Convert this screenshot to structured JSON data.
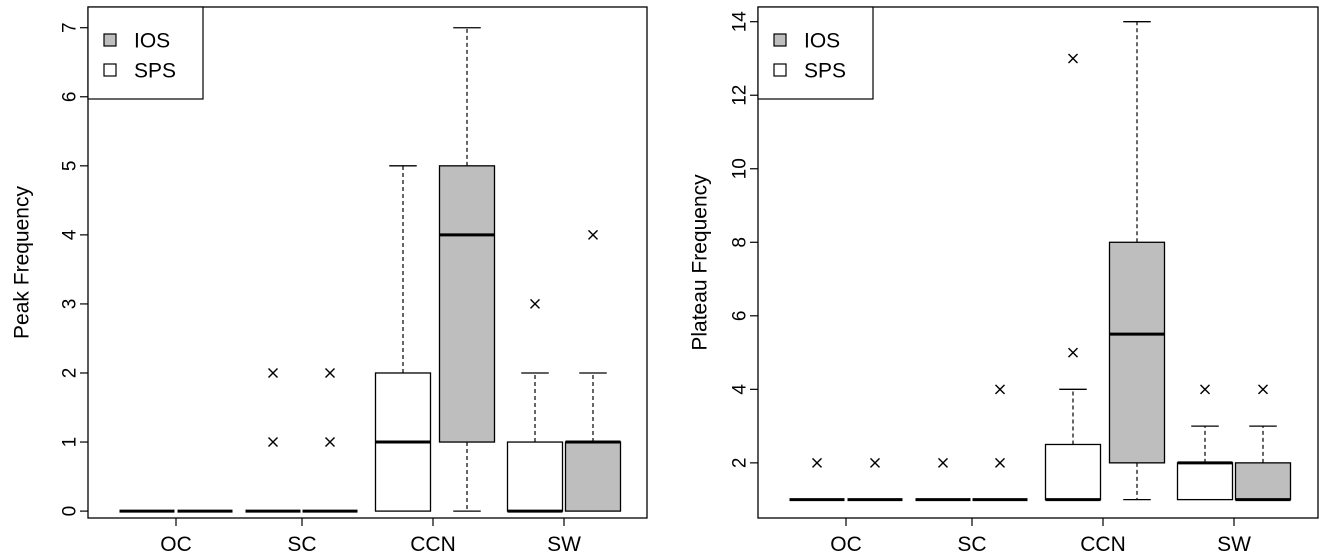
{
  "chart_data": [
    {
      "type": "box",
      "ylabel": "Peak Frequency",
      "categories": [
        "OC",
        "SC",
        "CCN",
        "SW"
      ],
      "yticks": [
        0,
        1,
        2,
        3,
        4,
        5,
        6,
        7
      ],
      "ylim": [
        -0.1,
        7.3
      ],
      "legend": {
        "position": "top-left",
        "entries": [
          {
            "label": "IOS",
            "color": "#bebebe"
          },
          {
            "label": "SPS",
            "color": "#ffffff"
          }
        ]
      },
      "series": [
        {
          "name": "SPS",
          "color": "#ffffff",
          "boxes": [
            {
              "category": "OC",
              "min": 0,
              "q1": 0,
              "median": 0,
              "q3": 0,
              "max": 0,
              "outliers": []
            },
            {
              "category": "SC",
              "min": 0,
              "q1": 0,
              "median": 0,
              "q3": 0,
              "max": 0,
              "outliers": [
                1,
                2
              ]
            },
            {
              "category": "CCN",
              "min": 0,
              "q1": 0,
              "median": 1,
              "q3": 2,
              "max": 5,
              "outliers": []
            },
            {
              "category": "SW",
              "min": 0,
              "q1": 0,
              "median": 0,
              "q3": 1,
              "max": 2,
              "outliers": [
                3
              ]
            }
          ]
        },
        {
          "name": "IOS",
          "color": "#bebebe",
          "boxes": [
            {
              "category": "OC",
              "min": 0,
              "q1": 0,
              "median": 0,
              "q3": 0,
              "max": 0,
              "outliers": []
            },
            {
              "category": "SC",
              "min": 0,
              "q1": 0,
              "median": 0,
              "q3": 0,
              "max": 0,
              "outliers": [
                1,
                2
              ]
            },
            {
              "category": "CCN",
              "min": 0,
              "q1": 1,
              "median": 4,
              "q3": 5,
              "max": 7,
              "outliers": []
            },
            {
              "category": "SW",
              "min": 0,
              "q1": 0,
              "median": 1,
              "q3": 1,
              "max": 2,
              "outliers": [
                4
              ]
            }
          ]
        }
      ]
    },
    {
      "type": "box",
      "ylabel": "Plateau Frequency",
      "categories": [
        "OC",
        "SC",
        "CCN",
        "SW"
      ],
      "yticks": [
        2,
        4,
        6,
        8,
        10,
        12,
        14
      ],
      "ylim": [
        0.5,
        14.4
      ],
      "legend": {
        "position": "top-left",
        "entries": [
          {
            "label": "IOS",
            "color": "#bebebe"
          },
          {
            "label": "SPS",
            "color": "#ffffff"
          }
        ]
      },
      "series": [
        {
          "name": "SPS",
          "color": "#ffffff",
          "boxes": [
            {
              "category": "OC",
              "min": 1,
              "q1": 1,
              "median": 1,
              "q3": 1,
              "max": 1,
              "outliers": [
                2
              ]
            },
            {
              "category": "SC",
              "min": 1,
              "q1": 1,
              "median": 1,
              "q3": 1,
              "max": 1,
              "outliers": [
                2
              ]
            },
            {
              "category": "CCN",
              "min": 1,
              "q1": 1,
              "median": 1,
              "q3": 2.5,
              "max": 4,
              "outliers": [
                5,
                13
              ]
            },
            {
              "category": "SW",
              "min": 1,
              "q1": 1,
              "median": 2,
              "q3": 2,
              "max": 3,
              "outliers": [
                4
              ]
            }
          ]
        },
        {
          "name": "IOS",
          "color": "#bebebe",
          "boxes": [
            {
              "category": "OC",
              "min": 1,
              "q1": 1,
              "median": 1,
              "q3": 1,
              "max": 1,
              "outliers": [
                2
              ]
            },
            {
              "category": "SC",
              "min": 1,
              "q1": 1,
              "median": 1,
              "q3": 1,
              "max": 1,
              "outliers": [
                2,
                4
              ]
            },
            {
              "category": "CCN",
              "min": 1,
              "q1": 2,
              "median": 5.5,
              "q3": 8,
              "max": 14,
              "outliers": []
            },
            {
              "category": "SW",
              "min": 1,
              "q1": 1,
              "median": 1,
              "q3": 2,
              "max": 3,
              "outliers": [
                4
              ]
            }
          ]
        }
      ]
    }
  ]
}
